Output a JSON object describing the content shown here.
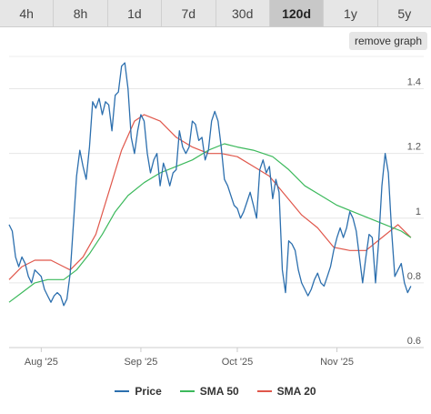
{
  "tabs": [
    {
      "label": "4h",
      "active": false
    },
    {
      "label": "8h",
      "active": false
    },
    {
      "label": "1d",
      "active": false
    },
    {
      "label": "7d",
      "active": false
    },
    {
      "label": "30d",
      "active": false
    },
    {
      "label": "120d",
      "active": true
    },
    {
      "label": "1y",
      "active": false
    },
    {
      "label": "5y",
      "active": false
    }
  ],
  "remove_graph_label": "remove graph",
  "chart_data": {
    "type": "line",
    "title": "",
    "xlabel": "",
    "ylabel": "",
    "x_range": [
      "2025-07-22",
      "2025-11-28"
    ],
    "ylim": [
      0.6,
      1.5
    ],
    "y_ticks": [
      0.6,
      0.8,
      1,
      1.2,
      1.4
    ],
    "y_tick_labels": [
      "0.6",
      "0.8",
      "1",
      "1.2",
      "1.4"
    ],
    "x_ticks": [
      {
        "date": "2025-08-01",
        "label": "Aug '25"
      },
      {
        "date": "2025-09-01",
        "label": "Sep '25"
      },
      {
        "date": "2025-10-01",
        "label": "Oct '25"
      },
      {
        "date": "2025-11-01",
        "label": "Nov '25"
      }
    ],
    "grid": "horizontal",
    "legend_position": "bottom-center",
    "series": [
      {
        "name": "Price",
        "color": "#2c6fae",
        "points": [
          [
            "2025-07-22",
            0.98
          ],
          [
            "2025-07-23",
            0.96
          ],
          [
            "2025-07-24",
            0.88
          ],
          [
            "2025-07-25",
            0.85
          ],
          [
            "2025-07-26",
            0.88
          ],
          [
            "2025-07-27",
            0.86
          ],
          [
            "2025-07-28",
            0.82
          ],
          [
            "2025-07-29",
            0.8
          ],
          [
            "2025-07-30",
            0.84
          ],
          [
            "2025-07-31",
            0.83
          ],
          [
            "2025-08-01",
            0.82
          ],
          [
            "2025-08-02",
            0.78
          ],
          [
            "2025-08-03",
            0.76
          ],
          [
            "2025-08-04",
            0.74
          ],
          [
            "2025-08-05",
            0.76
          ],
          [
            "2025-08-06",
            0.77
          ],
          [
            "2025-08-07",
            0.76
          ],
          [
            "2025-08-08",
            0.73
          ],
          [
            "2025-08-09",
            0.75
          ],
          [
            "2025-08-10",
            0.83
          ],
          [
            "2025-08-11",
            0.98
          ],
          [
            "2025-08-12",
            1.13
          ],
          [
            "2025-08-13",
            1.21
          ],
          [
            "2025-08-14",
            1.16
          ],
          [
            "2025-08-15",
            1.12
          ],
          [
            "2025-08-16",
            1.22
          ],
          [
            "2025-08-17",
            1.36
          ],
          [
            "2025-08-18",
            1.34
          ],
          [
            "2025-08-19",
            1.37
          ],
          [
            "2025-08-20",
            1.32
          ],
          [
            "2025-08-21",
            1.36
          ],
          [
            "2025-08-22",
            1.35
          ],
          [
            "2025-08-23",
            1.27
          ],
          [
            "2025-08-24",
            1.38
          ],
          [
            "2025-08-25",
            1.39
          ],
          [
            "2025-08-26",
            1.47
          ],
          [
            "2025-08-27",
            1.48
          ],
          [
            "2025-08-28",
            1.4
          ],
          [
            "2025-08-29",
            1.25
          ],
          [
            "2025-08-30",
            1.2
          ],
          [
            "2025-08-31",
            1.27
          ],
          [
            "2025-09-01",
            1.32
          ],
          [
            "2025-09-02",
            1.3
          ],
          [
            "2025-09-03",
            1.2
          ],
          [
            "2025-09-04",
            1.14
          ],
          [
            "2025-09-05",
            1.18
          ],
          [
            "2025-09-06",
            1.2
          ],
          [
            "2025-09-07",
            1.1
          ],
          [
            "2025-09-08",
            1.17
          ],
          [
            "2025-09-09",
            1.14
          ],
          [
            "2025-09-10",
            1.1
          ],
          [
            "2025-09-11",
            1.14
          ],
          [
            "2025-09-12",
            1.15
          ],
          [
            "2025-09-13",
            1.27
          ],
          [
            "2025-09-14",
            1.22
          ],
          [
            "2025-09-15",
            1.2
          ],
          [
            "2025-09-16",
            1.22
          ],
          [
            "2025-09-17",
            1.3
          ],
          [
            "2025-09-18",
            1.29
          ],
          [
            "2025-09-19",
            1.24
          ],
          [
            "2025-09-20",
            1.25
          ],
          [
            "2025-09-21",
            1.18
          ],
          [
            "2025-09-22",
            1.21
          ],
          [
            "2025-09-23",
            1.3
          ],
          [
            "2025-09-24",
            1.33
          ],
          [
            "2025-09-25",
            1.3
          ],
          [
            "2025-09-26",
            1.22
          ],
          [
            "2025-09-27",
            1.12
          ],
          [
            "2025-09-28",
            1.1
          ],
          [
            "2025-09-29",
            1.07
          ],
          [
            "2025-09-30",
            1.04
          ],
          [
            "2025-10-01",
            1.03
          ],
          [
            "2025-10-02",
            1.0
          ],
          [
            "2025-10-03",
            1.02
          ],
          [
            "2025-10-04",
            1.05
          ],
          [
            "2025-10-05",
            1.08
          ],
          [
            "2025-10-06",
            1.04
          ],
          [
            "2025-10-07",
            1.0
          ],
          [
            "2025-10-08",
            1.15
          ],
          [
            "2025-10-09",
            1.18
          ],
          [
            "2025-10-10",
            1.14
          ],
          [
            "2025-10-11",
            1.16
          ],
          [
            "2025-10-12",
            1.06
          ],
          [
            "2025-10-13",
            1.12
          ],
          [
            "2025-10-14",
            1.08
          ],
          [
            "2025-10-15",
            0.84
          ],
          [
            "2025-10-16",
            0.77
          ],
          [
            "2025-10-17",
            0.93
          ],
          [
            "2025-10-18",
            0.92
          ],
          [
            "2025-10-19",
            0.9
          ],
          [
            "2025-10-20",
            0.84
          ],
          [
            "2025-10-21",
            0.8
          ],
          [
            "2025-10-22",
            0.78
          ],
          [
            "2025-10-23",
            0.76
          ],
          [
            "2025-10-24",
            0.78
          ],
          [
            "2025-10-25",
            0.81
          ],
          [
            "2025-10-26",
            0.83
          ],
          [
            "2025-10-27",
            0.8
          ],
          [
            "2025-10-28",
            0.79
          ],
          [
            "2025-10-29",
            0.82
          ],
          [
            "2025-10-30",
            0.85
          ],
          [
            "2025-10-31",
            0.9
          ],
          [
            "2025-11-01",
            0.94
          ],
          [
            "2025-11-02",
            0.97
          ],
          [
            "2025-11-03",
            0.94
          ],
          [
            "2025-11-04",
            0.97
          ],
          [
            "2025-11-05",
            1.02
          ],
          [
            "2025-11-06",
            1.0
          ],
          [
            "2025-11-07",
            0.96
          ],
          [
            "2025-11-08",
            0.88
          ],
          [
            "2025-11-09",
            0.8
          ],
          [
            "2025-11-10",
            0.88
          ],
          [
            "2025-11-11",
            0.95
          ],
          [
            "2025-11-12",
            0.94
          ],
          [
            "2025-11-13",
            0.8
          ],
          [
            "2025-11-14",
            0.93
          ],
          [
            "2025-11-15",
            1.1
          ],
          [
            "2025-11-16",
            1.2
          ],
          [
            "2025-11-17",
            1.14
          ],
          [
            "2025-11-18",
            0.96
          ],
          [
            "2025-11-19",
            0.82
          ],
          [
            "2025-11-20",
            0.84
          ],
          [
            "2025-11-21",
            0.86
          ],
          [
            "2025-11-22",
            0.8
          ],
          [
            "2025-11-23",
            0.77
          ],
          [
            "2025-11-24",
            0.79
          ]
        ]
      },
      {
        "name": "SMA 50",
        "color": "#3cb95c",
        "points": [
          [
            "2025-07-22",
            0.74
          ],
          [
            "2025-07-26",
            0.77
          ],
          [
            "2025-07-30",
            0.8
          ],
          [
            "2025-08-03",
            0.81
          ],
          [
            "2025-08-08",
            0.81
          ],
          [
            "2025-08-12",
            0.84
          ],
          [
            "2025-08-16",
            0.89
          ],
          [
            "2025-08-20",
            0.95
          ],
          [
            "2025-08-24",
            1.02
          ],
          [
            "2025-08-28",
            1.07
          ],
          [
            "2025-09-02",
            1.11
          ],
          [
            "2025-09-07",
            1.14
          ],
          [
            "2025-09-12",
            1.16
          ],
          [
            "2025-09-17",
            1.18
          ],
          [
            "2025-09-22",
            1.21
          ],
          [
            "2025-09-27",
            1.23
          ],
          [
            "2025-10-01",
            1.22
          ],
          [
            "2025-10-06",
            1.21
          ],
          [
            "2025-10-12",
            1.19
          ],
          [
            "2025-10-17",
            1.15
          ],
          [
            "2025-10-22",
            1.1
          ],
          [
            "2025-10-27",
            1.07
          ],
          [
            "2025-11-01",
            1.04
          ],
          [
            "2025-11-06",
            1.02
          ],
          [
            "2025-11-11",
            1.0
          ],
          [
            "2025-11-16",
            0.98
          ],
          [
            "2025-11-21",
            0.96
          ],
          [
            "2025-11-24",
            0.94
          ]
        ]
      },
      {
        "name": "SMA 20",
        "color": "#e0574b",
        "points": [
          [
            "2025-07-22",
            0.81
          ],
          [
            "2025-07-26",
            0.85
          ],
          [
            "2025-07-30",
            0.87
          ],
          [
            "2025-08-04",
            0.87
          ],
          [
            "2025-08-08",
            0.85
          ],
          [
            "2025-08-10",
            0.84
          ],
          [
            "2025-08-14",
            0.88
          ],
          [
            "2025-08-18",
            0.95
          ],
          [
            "2025-08-22",
            1.08
          ],
          [
            "2025-08-26",
            1.21
          ],
          [
            "2025-08-30",
            1.3
          ],
          [
            "2025-09-02",
            1.32
          ],
          [
            "2025-09-07",
            1.3
          ],
          [
            "2025-09-12",
            1.25
          ],
          [
            "2025-09-17",
            1.22
          ],
          [
            "2025-09-22",
            1.2
          ],
          [
            "2025-09-26",
            1.2
          ],
          [
            "2025-10-01",
            1.19
          ],
          [
            "2025-10-06",
            1.16
          ],
          [
            "2025-10-11",
            1.13
          ],
          [
            "2025-10-16",
            1.07
          ],
          [
            "2025-10-21",
            1.01
          ],
          [
            "2025-10-26",
            0.97
          ],
          [
            "2025-10-31",
            0.91
          ],
          [
            "2025-11-05",
            0.9
          ],
          [
            "2025-11-10",
            0.9
          ],
          [
            "2025-11-15",
            0.94
          ],
          [
            "2025-11-20",
            0.98
          ],
          [
            "2025-11-24",
            0.94
          ]
        ]
      }
    ]
  }
}
